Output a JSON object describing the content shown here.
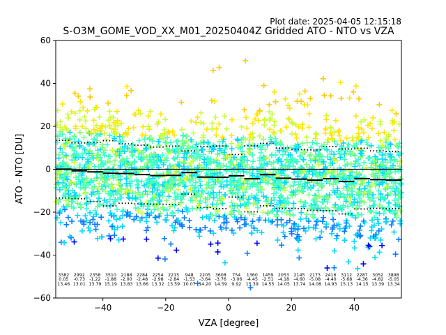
{
  "header": {
    "plot_date": "Plot date: 2025-04-05 12:15:18",
    "title": "S-O3M_GOME_VOD_XX_M01_20250404Z Gridded ATO - NTO vs VZA"
  },
  "colors": {
    "mean_line": "#000000",
    "std_lines": "#000000",
    "zero_line": "#000000",
    "scatter_palette": [
      "#0000ff",
      "#0a7cff",
      "#00d8ff",
      "#3cffc8",
      "#7dff7a",
      "#c8ff37",
      "#ffe600",
      "#ffc800"
    ]
  },
  "chart_data": {
    "type": "scatter",
    "title": "S-O3M_GOME_VOD_XX_M01_20250404Z Gridded ATO - NTO vs VZA",
    "xlabel": "VZA [degree]",
    "ylabel": "ATO - NTO [DU]",
    "xlim": [
      -55,
      55
    ],
    "ylim": [
      -60,
      60
    ],
    "xticks": [
      -40,
      -20,
      0,
      20,
      40
    ],
    "yticks": [
      -60,
      -40,
      -20,
      0,
      20,
      40,
      60
    ],
    "x_tick_labels": [
      "−40",
      "−20",
      "0",
      "20",
      "40"
    ],
    "y_tick_labels": [
      "−60",
      "−40",
      "−20",
      "0",
      "20",
      "40",
      "60"
    ],
    "grid": false,
    "legend": "none",
    "marker": "+",
    "bins": [
      {
        "center": -52.5,
        "count": "3382",
        "mean": "0.05",
        "std": "13.46",
        "mean_val": 0.05,
        "std_val": 13.46
      },
      {
        "center": -47.5,
        "count": "2992",
        "mean": "-0.73",
        "std": "13.01",
        "mean_val": -0.73,
        "std_val": 13.01
      },
      {
        "center": -42.5,
        "count": "2358",
        "mean": "-1.22",
        "std": "13.79",
        "mean_val": -1.22,
        "std_val": 13.79
      },
      {
        "center": -37.5,
        "count": "3510",
        "mean": "-1.88",
        "std": "15.19",
        "mean_val": -1.88,
        "std_val": 15.19
      },
      {
        "center": -32.5,
        "count": "2188",
        "mean": "-2.00",
        "std": "13.83",
        "mean_val": -2.0,
        "std_val": 13.83
      },
      {
        "center": -27.5,
        "count": "2284",
        "mean": "-2.48",
        "std": "13.66",
        "mean_val": -2.48,
        "std_val": 13.66
      },
      {
        "center": -22.5,
        "count": "2254",
        "mean": "-2.98",
        "std": "13.32",
        "mean_val": -2.98,
        "std_val": 13.32
      },
      {
        "center": -17.5,
        "count": "2215",
        "mean": "-2.84",
        "std": "13.59",
        "mean_val": -2.84,
        "std_val": 13.59
      },
      {
        "center": -12.5,
        "count": "948",
        "mean": "-1.53",
        "std": "10.07",
        "mean_val": -1.53,
        "std_val": 10.07
      },
      {
        "center": -7.5,
        "count": "2205",
        "mean": "-3.64",
        "std": "14.20",
        "mean_val": -3.64,
        "std_val": 14.2
      },
      {
        "center": -2.5,
        "count": "3608",
        "mean": "-3.76",
        "std": "14.59",
        "mean_val": -3.76,
        "std_val": 14.59
      },
      {
        "center": 2.5,
        "count": "754",
        "mean": "-3.06",
        "std": "9.92",
        "mean_val": -3.06,
        "std_val": 9.92
      },
      {
        "center": 7.5,
        "count": "1360",
        "mean": "-4.45",
        "std": "15.39",
        "mean_val": -4.45,
        "std_val": 15.39
      },
      {
        "center": 12.5,
        "count": "1459",
        "mean": "-2.51",
        "std": "14.55",
        "mean_val": -2.51,
        "std_val": 14.55
      },
      {
        "center": 17.5,
        "count": "2053",
        "mean": "-4.18",
        "std": "14.05",
        "mean_val": -4.18,
        "std_val": 14.05
      },
      {
        "center": 22.5,
        "count": "2145",
        "mean": "-4.60",
        "std": "13.74",
        "mean_val": -4.6,
        "std_val": 13.74
      },
      {
        "center": 27.5,
        "count": "2173",
        "mean": "-5.08",
        "std": "14.08",
        "mean_val": -5.08,
        "std_val": 14.08
      },
      {
        "center": 32.5,
        "count": "2416",
        "mean": "-4.40",
        "std": "14.93",
        "mean_val": -4.4,
        "std_val": 14.93
      },
      {
        "center": 37.5,
        "count": "3112",
        "mean": "-5.68",
        "std": "15.13",
        "mean_val": -5.68,
        "std_val": 15.13
      },
      {
        "center": 42.5,
        "count": "2287",
        "mean": "-4.36",
        "std": "14.15",
        "mean_val": -4.36,
        "std_val": 14.15
      },
      {
        "center": 47.5,
        "count": "3052",
        "mean": "-4.82",
        "std": "13.39",
        "mean_val": -4.82,
        "std_val": 13.39
      },
      {
        "center": 52.5,
        "count": "3898",
        "mean": "-5.05",
        "std": "13.34",
        "mean_val": -5.05,
        "std_val": 13.34
      }
    ]
  }
}
